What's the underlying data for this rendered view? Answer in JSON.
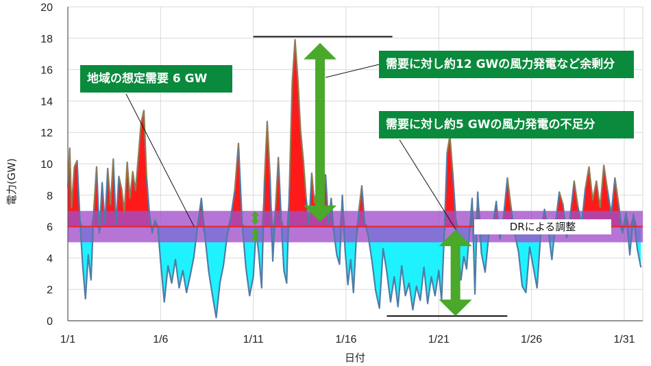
{
  "chart_data": {
    "type": "area",
    "xlabel": "日付",
    "ylabel": "電力(GW)",
    "ylim": [
      0,
      20
    ],
    "yticks": [
      "0",
      "2",
      "4",
      "6",
      "8",
      "10",
      "12",
      "14",
      "16",
      "18",
      "20"
    ],
    "xlim": [
      1,
      32
    ],
    "xticks": [
      {
        "day": 1,
        "label": "1/1"
      },
      {
        "day": 6,
        "label": "1/6"
      },
      {
        "day": 11,
        "label": "1/11"
      },
      {
        "day": 16,
        "label": "1/16"
      },
      {
        "day": 21,
        "label": "1/21"
      },
      {
        "day": 26,
        "label": "1/26"
      },
      {
        "day": 31,
        "label": "1/31"
      }
    ],
    "grid": true,
    "demand_line": 6,
    "dr_band": [
      5,
      7
    ],
    "max_line": {
      "value": 18.1,
      "from_day": 11.0,
      "to_day": 18.5
    },
    "min_line": {
      "value": 0.3,
      "from_day": 18.2,
      "to_day": 24.7
    },
    "surplus_arrow": {
      "day": 14.6,
      "from": 6.3,
      "to": 17.7
    },
    "deficit_arrow": {
      "day": 21.9,
      "from": 0.3,
      "to": 5.8
    },
    "small_arrows": {
      "day": 11.1,
      "pairs": [
        [
          6.1,
          7.0
        ],
        [
          5.0,
          5.9
        ]
      ]
    },
    "series": [
      {
        "kind": "wind_power",
        "x": [
          1.0,
          1.1,
          1.2,
          1.35,
          1.5,
          1.65,
          1.8,
          1.95,
          2.1,
          2.25,
          2.4,
          2.55,
          2.7,
          2.85,
          3.0,
          3.15,
          3.3,
          3.45,
          3.6,
          3.75,
          3.9,
          4.05,
          4.2,
          4.35,
          4.5,
          4.65,
          4.8,
          4.95,
          5.1,
          5.25,
          5.4,
          5.55,
          5.7,
          5.85,
          6.0,
          6.2,
          6.4,
          6.6,
          6.8,
          7.0,
          7.2,
          7.4,
          7.6,
          7.8,
          8.0,
          8.2,
          8.4,
          8.6,
          8.8,
          9.0,
          9.2,
          9.4,
          9.6,
          9.8,
          10.0,
          10.2,
          10.4,
          10.6,
          10.8,
          11.0,
          11.15,
          11.3,
          11.45,
          11.6,
          11.75,
          11.9,
          12.05,
          12.2,
          12.35,
          12.5,
          12.65,
          12.8,
          12.95,
          13.1,
          13.25,
          13.4,
          13.55,
          13.7,
          13.85,
          14.0,
          14.15,
          14.3,
          14.45,
          14.6,
          14.75,
          14.9,
          15.05,
          15.2,
          15.35,
          15.5,
          15.65,
          15.8,
          15.95,
          16.1,
          16.25,
          16.4,
          16.55,
          16.7,
          16.85,
          17.0,
          17.2,
          17.4,
          17.6,
          17.8,
          18.0,
          18.2,
          18.4,
          18.6,
          18.8,
          19.0,
          19.2,
          19.4,
          19.6,
          19.8,
          20.0,
          20.2,
          20.4,
          20.6,
          20.8,
          21.0,
          21.15,
          21.3,
          21.45,
          21.6,
          21.75,
          21.9,
          22.05,
          22.2,
          22.35,
          22.5,
          22.65,
          22.8,
          22.95,
          23.1,
          23.3,
          23.5,
          23.7,
          23.9,
          24.1,
          24.3,
          24.5,
          24.7,
          24.9,
          25.1,
          25.3,
          25.5,
          25.7,
          25.9,
          26.1,
          26.3,
          26.5,
          26.7,
          26.9,
          27.1,
          27.3,
          27.5,
          27.7,
          27.9,
          28.1,
          28.3,
          28.5,
          28.7,
          28.9,
          29.1,
          29.3,
          29.5,
          29.7,
          29.9,
          30.1,
          30.3,
          30.5,
          30.7,
          30.9,
          31.1,
          31.3,
          31.5,
          31.7,
          31.9
        ],
        "y": [
          8.5,
          11.0,
          7.2,
          9.8,
          10.2,
          6.5,
          3.5,
          1.4,
          4.2,
          2.6,
          7.1,
          9.8,
          5.6,
          8.8,
          6.2,
          9.7,
          7.4,
          10.3,
          6.1,
          9.2,
          8.4,
          6.9,
          10.1,
          7.8,
          9.5,
          8.3,
          10.4,
          12.6,
          13.4,
          9.1,
          6.8,
          5.6,
          6.4,
          6.0,
          3.8,
          1.2,
          3.5,
          2.4,
          3.9,
          2.1,
          3.2,
          1.8,
          2.9,
          4.1,
          6.1,
          7.8,
          5.3,
          3.1,
          1.6,
          0.2,
          2.4,
          3.6,
          5.5,
          6.7,
          8.3,
          11.3,
          6.2,
          3.4,
          1.6,
          2.8,
          5.8,
          4.2,
          2.1,
          8.9,
          12.7,
          9.3,
          3.8,
          7.2,
          10.4,
          6.6,
          3.2,
          2.4,
          8.6,
          15.2,
          17.9,
          15.4,
          12.1,
          10.2,
          7.8,
          6.1,
          9.4,
          7.5,
          8.6,
          6.8,
          8.1,
          9.3,
          6.2,
          7.8,
          5.6,
          4.2,
          3.6,
          8.0,
          4.5,
          2.3,
          3.9,
          1.8,
          5.2,
          7.1,
          8.6,
          6.3,
          5.4,
          3.8,
          1.9,
          0.8,
          4.6,
          3.1,
          1.2,
          2.8,
          0.9,
          3.5,
          1.6,
          2.4,
          0.7,
          2.2,
          1.3,
          3.4,
          1.1,
          2.8,
          1.6,
          3.2,
          1.3,
          5.6,
          10.7,
          11.8,
          9.5,
          6.8,
          4.3,
          2.6,
          4.1,
          3.3,
          5.6,
          7.8,
          1.7,
          8.2,
          4.3,
          3.1,
          5.5,
          6.0,
          7.6,
          5.2,
          6.7,
          9.1,
          7.2,
          5.5,
          4.4,
          2.2,
          1.8,
          4.7,
          3.4,
          2.1,
          5.6,
          7.1,
          5.8,
          3.9,
          6.3,
          8.2,
          7.4,
          5.3,
          6.8,
          8.9,
          7.3,
          6.1,
          8.4,
          9.8,
          7.7,
          8.9,
          7.2,
          9.9,
          8.3,
          6.8,
          9.1,
          7.4,
          5.6,
          6.9,
          4.2,
          6.8,
          4.6,
          3.4
        ]
      }
    ],
    "annotations": {
      "regional_demand": "地域の想定需要 6 GW",
      "surplus": "需要に対し約12 GWの風力発電など余剰分",
      "deficit": "需要に対し約5 GWの風力発電の不足分",
      "dr": "DRによる調整"
    },
    "colors": {
      "surplus_fill": "#ff1a1a",
      "deficit_fill": "#1ef2ff",
      "wind_line": "#4f7ca6",
      "peak_line": "#a27a38",
      "demand_line": "#e8262b",
      "dr_band": "#a24ecb",
      "arrow": "#4aa82a",
      "callout_bg": "#0a8a3c",
      "grid": "#d9d9d9"
    }
  }
}
